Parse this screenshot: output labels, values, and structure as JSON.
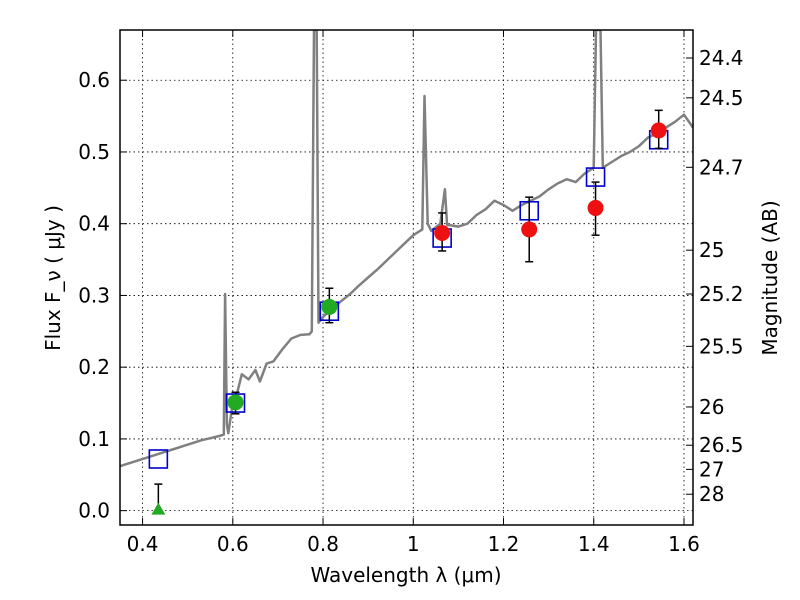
{
  "chart_data": {
    "type": "scatter",
    "title": "",
    "xlabel": "Wavelength  λ (μm)",
    "ylabel": "Flux  F_ν  ( μJy )",
    "y2label": "Magnitude (AB)",
    "xlim": [
      0.35,
      1.62
    ],
    "ylim": [
      -0.02,
      0.67
    ],
    "grid": true,
    "x_ticks": [
      {
        "v": 0.4,
        "label": "0.4"
      },
      {
        "v": 0.6,
        "label": "0.6"
      },
      {
        "v": 0.8,
        "label": "0.8"
      },
      {
        "v": 1.0,
        "label": "1"
      },
      {
        "v": 1.2,
        "label": "1.2"
      },
      {
        "v": 1.4,
        "label": "1.4"
      },
      {
        "v": 1.6,
        "label": "1.6"
      }
    ],
    "y_ticks": [
      {
        "v": 0.0,
        "label": "0.0"
      },
      {
        "v": 0.1,
        "label": "0.1"
      },
      {
        "v": 0.2,
        "label": "0.2"
      },
      {
        "v": 0.3,
        "label": "0.3"
      },
      {
        "v": 0.4,
        "label": "0.4"
      },
      {
        "v": 0.5,
        "label": "0.5"
      },
      {
        "v": 0.6,
        "label": "0.6"
      }
    ],
    "mag_ticks": [
      {
        "mag": 24.4,
        "label": "24.4"
      },
      {
        "mag": 24.5,
        "label": "24.5"
      },
      {
        "mag": 24.7,
        "label": "24.7"
      },
      {
        "mag": 25.0,
        "label": "25"
      },
      {
        "mag": 25.2,
        "label": "25.2"
      },
      {
        "mag": 25.5,
        "label": "25.5"
      },
      {
        "mag": 26.0,
        "label": "26"
      },
      {
        "mag": 26.5,
        "label": "26.5"
      },
      {
        "mag": 27.0,
        "label": "27"
      },
      {
        "mag": 28.0,
        "label": "28"
      }
    ],
    "series": [
      {
        "kind": "spectrum",
        "color": "#808080",
        "points": [
          [
            0.35,
            0.062
          ],
          [
            0.37,
            0.066
          ],
          [
            0.39,
            0.07
          ],
          [
            0.41,
            0.074
          ],
          [
            0.43,
            0.078
          ],
          [
            0.45,
            0.082
          ],
          [
            0.47,
            0.086
          ],
          [
            0.49,
            0.09
          ],
          [
            0.51,
            0.094
          ],
          [
            0.53,
            0.098
          ],
          [
            0.55,
            0.101
          ],
          [
            0.57,
            0.104
          ],
          [
            0.58,
            0.106
          ],
          [
            0.583,
            0.302
          ],
          [
            0.587,
            0.12
          ],
          [
            0.59,
            0.108
          ],
          [
            0.6,
            0.15
          ],
          [
            0.61,
            0.165
          ],
          [
            0.62,
            0.19
          ],
          [
            0.635,
            0.183
          ],
          [
            0.65,
            0.196
          ],
          [
            0.66,
            0.18
          ],
          [
            0.675,
            0.205
          ],
          [
            0.69,
            0.208
          ],
          [
            0.71,
            0.225
          ],
          [
            0.73,
            0.24
          ],
          [
            0.75,
            0.245
          ],
          [
            0.77,
            0.246
          ],
          [
            0.775,
            0.25
          ],
          [
            0.78,
            0.67
          ],
          [
            0.786,
            0.67
          ],
          [
            0.79,
            0.262
          ],
          [
            0.8,
            0.27
          ],
          [
            0.82,
            0.282
          ],
          [
            0.84,
            0.292
          ],
          [
            0.86,
            0.302
          ],
          [
            0.88,
            0.314
          ],
          [
            0.9,
            0.325
          ],
          [
            0.92,
            0.336
          ],
          [
            0.94,
            0.348
          ],
          [
            0.96,
            0.36
          ],
          [
            0.98,
            0.372
          ],
          [
            1.0,
            0.384
          ],
          [
            1.02,
            0.392
          ],
          [
            1.025,
            0.578
          ],
          [
            1.032,
            0.4
          ],
          [
            1.04,
            0.39
          ],
          [
            1.06,
            0.4
          ],
          [
            1.07,
            0.448
          ],
          [
            1.075,
            0.398
          ],
          [
            1.08,
            0.398
          ],
          [
            1.1,
            0.396
          ],
          [
            1.12,
            0.4
          ],
          [
            1.14,
            0.412
          ],
          [
            1.16,
            0.42
          ],
          [
            1.18,
            0.432
          ],
          [
            1.2,
            0.426
          ],
          [
            1.22,
            0.418
          ],
          [
            1.24,
            0.426
          ],
          [
            1.26,
            0.432
          ],
          [
            1.28,
            0.438
          ],
          [
            1.3,
            0.448
          ],
          [
            1.32,
            0.456
          ],
          [
            1.34,
            0.462
          ],
          [
            1.36,
            0.458
          ],
          [
            1.38,
            0.47
          ],
          [
            1.4,
            0.478
          ],
          [
            1.405,
            0.67
          ],
          [
            1.415,
            0.67
          ],
          [
            1.42,
            0.478
          ],
          [
            1.44,
            0.486
          ],
          [
            1.46,
            0.494
          ],
          [
            1.48,
            0.5
          ],
          [
            1.5,
            0.508
          ],
          [
            1.52,
            0.52
          ],
          [
            1.54,
            0.526
          ],
          [
            1.56,
            0.534
          ],
          [
            1.58,
            0.542
          ],
          [
            1.6,
            0.552
          ],
          [
            1.62,
            0.534
          ]
        ]
      },
      {
        "kind": "model_photometry",
        "marker": "open-square",
        "color": "#0000cc",
        "points": [
          [
            0.435,
            0.072
          ],
          [
            0.606,
            0.15
          ],
          [
            0.814,
            0.278
          ],
          [
            1.064,
            0.38
          ],
          [
            1.257,
            0.418
          ],
          [
            1.404,
            0.465
          ],
          [
            1.544,
            0.517
          ]
        ]
      },
      {
        "kind": "observed_photometry_optical",
        "marker": "filled-circle",
        "color": "#22aa22",
        "points": [
          {
            "x": 0.606,
            "y": 0.151,
            "err_lo": 0.135,
            "err_hi": 0.165
          },
          {
            "x": 0.814,
            "y": 0.284,
            "err_lo": 0.262,
            "err_hi": 0.31
          }
        ]
      },
      {
        "kind": "upper_limit",
        "marker": "filled-triangle",
        "color": "#22aa22",
        "points": [
          {
            "x": 0.435,
            "y": 0.0,
            "err_lo": 0.0,
            "err_hi": 0.037
          }
        ]
      },
      {
        "kind": "observed_photometry_ir",
        "marker": "filled-circle",
        "color": "#ee1111",
        "points": [
          {
            "x": 1.064,
            "y": 0.387,
            "err_lo": 0.362,
            "err_hi": 0.415
          },
          {
            "x": 1.257,
            "y": 0.392,
            "err_lo": 0.347,
            "err_hi": 0.437
          },
          {
            "x": 1.404,
            "y": 0.422,
            "err_lo": 0.384,
            "err_hi": 0.458
          },
          {
            "x": 1.544,
            "y": 0.53,
            "err_lo": 0.505,
            "err_hi": 0.558
          }
        ]
      }
    ]
  }
}
